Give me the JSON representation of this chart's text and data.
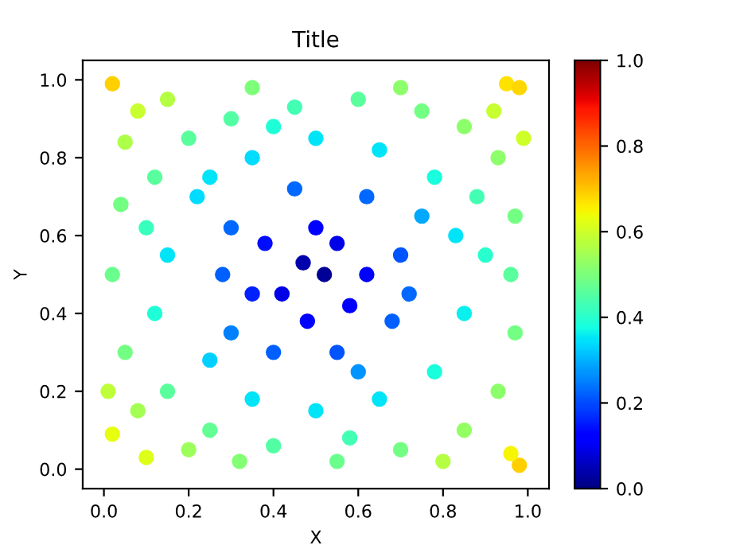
{
  "chart_data": {
    "type": "scatter",
    "title": "Title",
    "xlabel": "X",
    "ylabel": "Y",
    "marker": "circle",
    "x": [
      0.02,
      0.95,
      0.98,
      0.98,
      0.96,
      0.1,
      0.02,
      0.05,
      0.15,
      0.3,
      0.45,
      0.6,
      0.75,
      0.85,
      0.93,
      0.97,
      0.96,
      0.97,
      0.93,
      0.85,
      0.7,
      0.55,
      0.4,
      0.25,
      0.15,
      0.05,
      0.02,
      0.04,
      0.12,
      0.2,
      0.22,
      0.15,
      0.12,
      0.25,
      0.35,
      0.5,
      0.65,
      0.78,
      0.85,
      0.83,
      0.78,
      0.65,
      0.5,
      0.35,
      0.3,
      0.35,
      0.4,
      0.55,
      0.68,
      0.7,
      0.62,
      0.45,
      0.47,
      0.52,
      0.55,
      0.42,
      0.58,
      0.5,
      0.38,
      0.62,
      0.48,
      0.28,
      0.72,
      0.6,
      0.3,
      0.25,
      0.75,
      0.9,
      0.08,
      0.2,
      0.88,
      0.1,
      0.4,
      0.58,
      0.32,
      0.8,
      0.92,
      0.08,
      0.7,
      0.35,
      0.99,
      0.01
    ],
    "values": [
      0.99,
      0.99,
      0.98,
      0.01,
      0.04,
      0.03,
      0.09,
      0.84,
      0.95,
      0.9,
      0.93,
      0.95,
      0.92,
      0.88,
      0.8,
      0.65,
      0.5,
      0.35,
      0.2,
      0.1,
      0.05,
      0.02,
      0.06,
      0.1,
      0.2,
      0.3,
      0.5,
      0.68,
      0.75,
      0.85,
      0.7,
      0.55,
      0.4,
      0.28,
      0.18,
      0.15,
      0.18,
      0.25,
      0.4,
      0.6,
      0.75,
      0.82,
      0.85,
      0.8,
      0.62,
      0.45,
      0.3,
      0.3,
      0.38,
      0.55,
      0.7,
      0.72,
      0.53,
      0.5,
      0.58,
      0.45,
      0.42,
      0.62,
      0.58,
      0.5,
      0.38,
      0.5,
      0.45,
      0.25,
      0.35,
      0.75,
      0.65,
      0.55,
      0.15,
      0.05,
      0.7,
      0.62,
      0.88,
      0.08,
      0.02,
      0.02,
      0.92,
      0.92,
      0.98,
      0.98,
      0.85,
      0.2
    ],
    "cvalues": [
      0.69,
      0.67,
      0.68,
      0.69,
      0.65,
      0.62,
      0.63,
      0.56,
      0.57,
      0.45,
      0.43,
      0.46,
      0.49,
      0.52,
      0.52,
      0.49,
      0.46,
      0.49,
      0.52,
      0.53,
      0.49,
      0.48,
      0.45,
      0.47,
      0.46,
      0.49,
      0.48,
      0.49,
      0.46,
      0.46,
      0.34,
      0.35,
      0.39,
      0.33,
      0.35,
      0.35,
      0.35,
      0.38,
      0.36,
      0.35,
      0.38,
      0.35,
      0.35,
      0.34,
      0.23,
      0.16,
      0.22,
      0.21,
      0.22,
      0.21,
      0.23,
      0.23,
      0.04,
      0.02,
      0.09,
      0.09,
      0.11,
      0.12,
      0.14,
      0.12,
      0.12,
      0.22,
      0.23,
      0.27,
      0.25,
      0.35,
      0.29,
      0.4,
      0.55,
      0.54,
      0.43,
      0.42,
      0.39,
      0.43,
      0.51,
      0.57,
      0.59,
      0.59,
      0.52,
      0.5,
      0.6,
      0.58
    ],
    "xlim": [
      -0.05,
      1.05
    ],
    "ylim": [
      -0.05,
      1.05
    ],
    "xticks": [
      {
        "value": 0,
        "label": "0.0"
      },
      {
        "value": 0.2,
        "label": "0.2"
      },
      {
        "value": 0.4,
        "label": "0.4"
      },
      {
        "value": 0.6,
        "label": "0.6"
      },
      {
        "value": 0.8,
        "label": "0.8"
      },
      {
        "value": 1,
        "label": "1.0"
      }
    ],
    "yticks": [
      {
        "value": 0,
        "label": "0.0"
      },
      {
        "value": 0.2,
        "label": "0.2"
      },
      {
        "value": 0.4,
        "label": "0.4"
      },
      {
        "value": 0.6,
        "label": "0.6"
      },
      {
        "value": 0.8,
        "label": "0.8"
      },
      {
        "value": 1,
        "label": "1.0"
      }
    ],
    "clim": [
      0,
      1
    ],
    "cticks": [
      {
        "value": 0,
        "label": "0.0"
      },
      {
        "value": 0.2,
        "label": "0.2"
      },
      {
        "value": 0.4,
        "label": "0.4"
      },
      {
        "value": 0.6,
        "label": "0.6"
      },
      {
        "value": 0.8,
        "label": "0.8"
      },
      {
        "value": 1,
        "label": "1.0"
      }
    ]
  }
}
